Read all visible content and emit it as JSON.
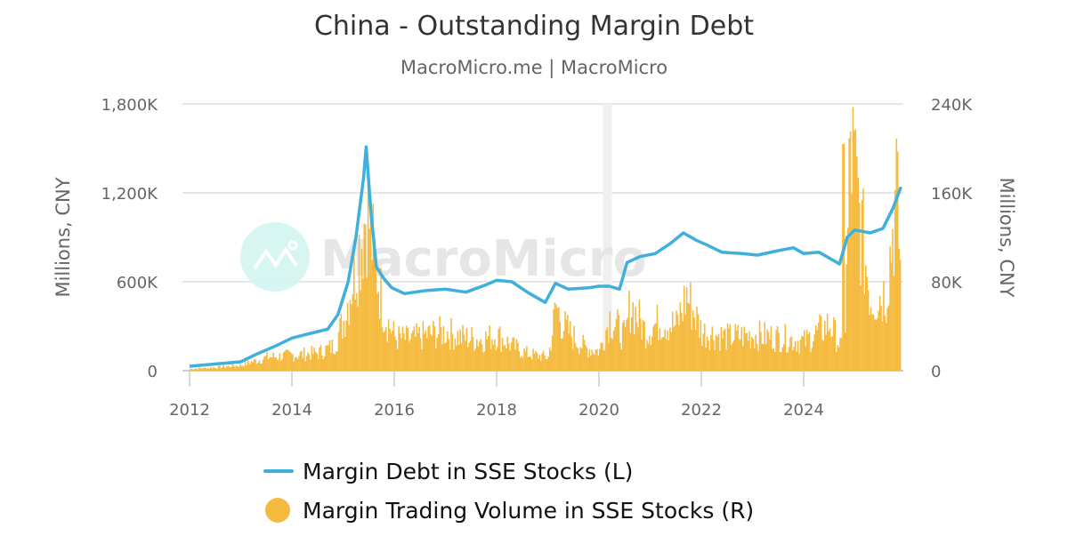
{
  "header": {
    "title": "China - Outstanding Margin Debt",
    "subtitle": "MacroMicro.me | MacroMicro"
  },
  "watermark": {
    "text": "MacroMicro"
  },
  "colors": {
    "debt_line": "#3fb0dc",
    "volume_bars": "#f5bb41",
    "grid": "#e6e6e6",
    "highlight_band": "#f0f0f0"
  },
  "legend": {
    "items": [
      {
        "label": "Margin Debt in SSE Stocks (L)",
        "color": "#3fb0dc",
        "symbol": "line"
      },
      {
        "label": "Margin Trading Volume in SSE Stocks (R)",
        "color": "#f5bb41",
        "symbol": "circle"
      }
    ]
  },
  "chart_data": {
    "type": "line+bar",
    "title": "China - Outstanding Margin Debt",
    "subtitle": "MacroMicro.me | MacroMicro",
    "xlabel": "",
    "ylabel_left": "Millions, CNY",
    "ylabel_right": "Millions, CNY",
    "x_ticks": [
      "2012",
      "2014",
      "2016",
      "2018",
      "2020",
      "2022",
      "2024"
    ],
    "y_left_ticks": [
      "0",
      "600K",
      "1,200K",
      "1,800K"
    ],
    "y_right_ticks": [
      "0",
      "80K",
      "160K",
      "240K"
    ],
    "ylim_left": [
      0,
      1800000
    ],
    "ylim_right": [
      0,
      240000
    ],
    "grid": true,
    "legend_position": "bottom",
    "highlight_band": {
      "x_start": 2020.08,
      "x_end": 2020.25
    },
    "series": [
      {
        "name": "Margin Debt in SSE Stocks (L)",
        "type": "line",
        "axis": "left",
        "x": [
          2012.0,
          2012.5,
          2013.0,
          2013.3,
          2013.7,
          2014.0,
          2014.4,
          2014.7,
          2014.9,
          2015.1,
          2015.25,
          2015.4,
          2015.45,
          2015.55,
          2015.65,
          2015.8,
          2015.95,
          2016.2,
          2016.6,
          2017.0,
          2017.4,
          2017.8,
          2018.0,
          2018.3,
          2018.6,
          2018.95,
          2019.15,
          2019.4,
          2019.8,
          2020.0,
          2020.2,
          2020.4,
          2020.55,
          2020.8,
          2021.1,
          2021.4,
          2021.65,
          2021.9,
          2022.1,
          2022.4,
          2022.8,
          2023.1,
          2023.5,
          2023.8,
          2024.0,
          2024.3,
          2024.7,
          2024.85,
          2025.0,
          2025.3,
          2025.55,
          2025.75,
          2025.9
        ],
        "values": [
          30000,
          45000,
          60000,
          110000,
          170000,
          220000,
          255000,
          280000,
          380000,
          600000,
          900000,
          1300000,
          1510000,
          1050000,
          700000,
          620000,
          560000,
          520000,
          540000,
          550000,
          530000,
          580000,
          610000,
          600000,
          530000,
          460000,
          590000,
          550000,
          560000,
          570000,
          570000,
          550000,
          730000,
          770000,
          790000,
          860000,
          930000,
          880000,
          850000,
          800000,
          790000,
          780000,
          810000,
          830000,
          790000,
          800000,
          720000,
          900000,
          950000,
          930000,
          960000,
          1100000,
          1240000
        ]
      },
      {
        "name": "Margin Trading Volume in SSE Stocks (R)",
        "type": "bar",
        "axis": "right",
        "x": [
          2012.0,
          2012.5,
          2013.0,
          2013.5,
          2014.0,
          2014.5,
          2014.8,
          2015.0,
          2015.2,
          2015.35,
          2015.45,
          2015.6,
          2015.8,
          2016.0,
          2016.3,
          2016.6,
          2017.0,
          2017.3,
          2017.7,
          2018.0,
          2018.3,
          2018.6,
          2019.0,
          2019.15,
          2019.3,
          2019.6,
          2019.75,
          2020.0,
          2020.2,
          2020.5,
          2020.6,
          2020.9,
          2021.2,
          2021.5,
          2021.7,
          2022.0,
          2022.5,
          2023.0,
          2023.5,
          2024.0,
          2024.5,
          2024.75,
          2024.8,
          2024.9,
          2025.1,
          2025.3,
          2025.6,
          2025.8,
          2025.9
        ],
        "values": [
          1500,
          3000,
          5000,
          12000,
          14000,
          16000,
          22000,
          45000,
          90000,
          120000,
          150000,
          100000,
          50000,
          30000,
          28000,
          32000,
          35000,
          30000,
          28000,
          32000,
          22000,
          15000,
          12000,
          58000,
          40000,
          25000,
          20000,
          18000,
          48000,
          30000,
          60000,
          35000,
          45000,
          40000,
          68000,
          35000,
          30000,
          32000,
          30000,
          26000,
          42000,
          18000,
          40000,
          204000,
          130000,
          65000,
          70000,
          160000,
          80000
        ]
      }
    ]
  }
}
